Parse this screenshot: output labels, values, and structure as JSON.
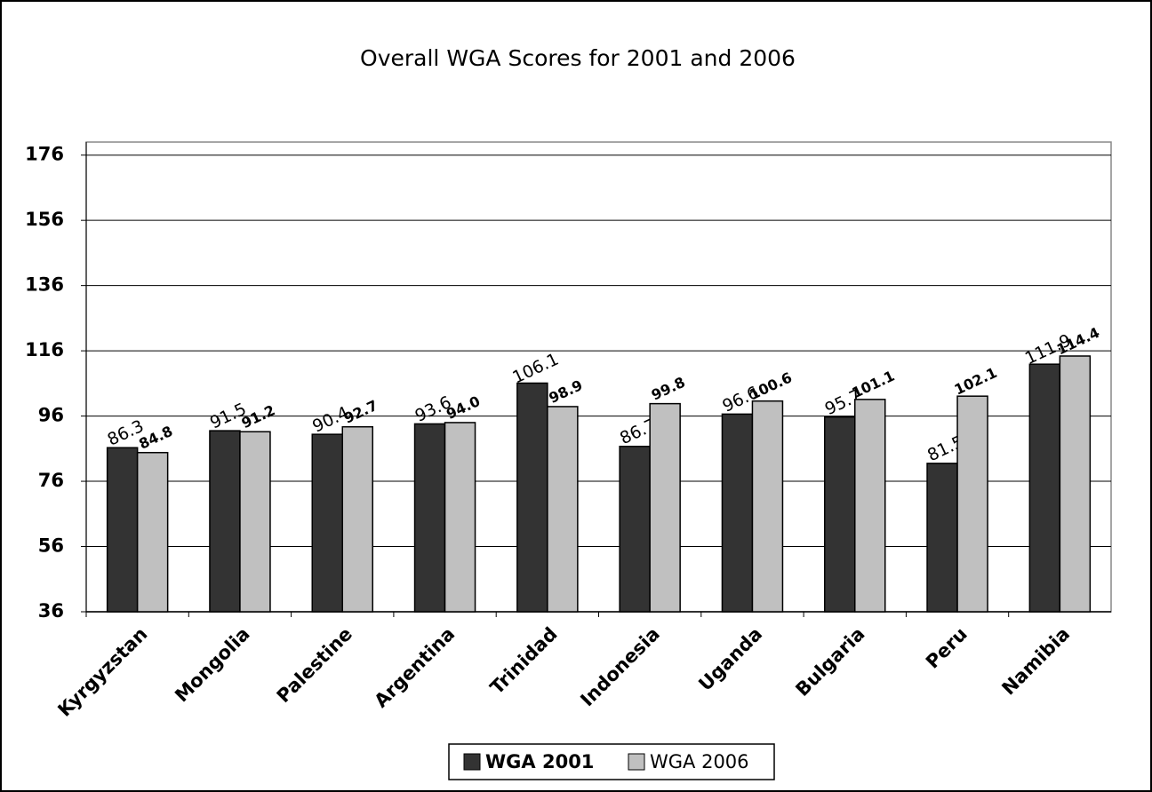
{
  "chart_data": {
    "type": "bar",
    "title": "Overall WGA Scores for 2001 and 2006",
    "categories": [
      "Kyrgyzstan",
      "Mongolia",
      "Palestine",
      "Argentina",
      "Trinidad",
      "Indonesia",
      "Uganda",
      "Bulgaria",
      "Peru",
      "Namibia"
    ],
    "series": [
      {
        "name": "WGA 2001",
        "color": "#333333",
        "values": [
          86.3,
          91.5,
          90.4,
          93.6,
          106.1,
          86.7,
          96.6,
          95.7,
          81.5,
          111.9
        ]
      },
      {
        "name": "WGA 2006",
        "color": "#c0c0c0",
        "values": [
          84.8,
          91.2,
          92.7,
          94.0,
          98.9,
          99.8,
          100.6,
          101.1,
          102.1,
          114.4
        ],
        "value_labels": [
          "84.8",
          "91.2",
          "92.7",
          "94.0",
          "98.9",
          "99.8",
          "100.6",
          "101.1",
          "102.1",
          "114.4"
        ]
      }
    ],
    "ylim": [
      36,
      180
    ],
    "yticks": [
      36,
      56,
      76,
      96,
      116,
      136,
      156,
      176
    ],
    "grid": true,
    "legend": "bottom"
  }
}
